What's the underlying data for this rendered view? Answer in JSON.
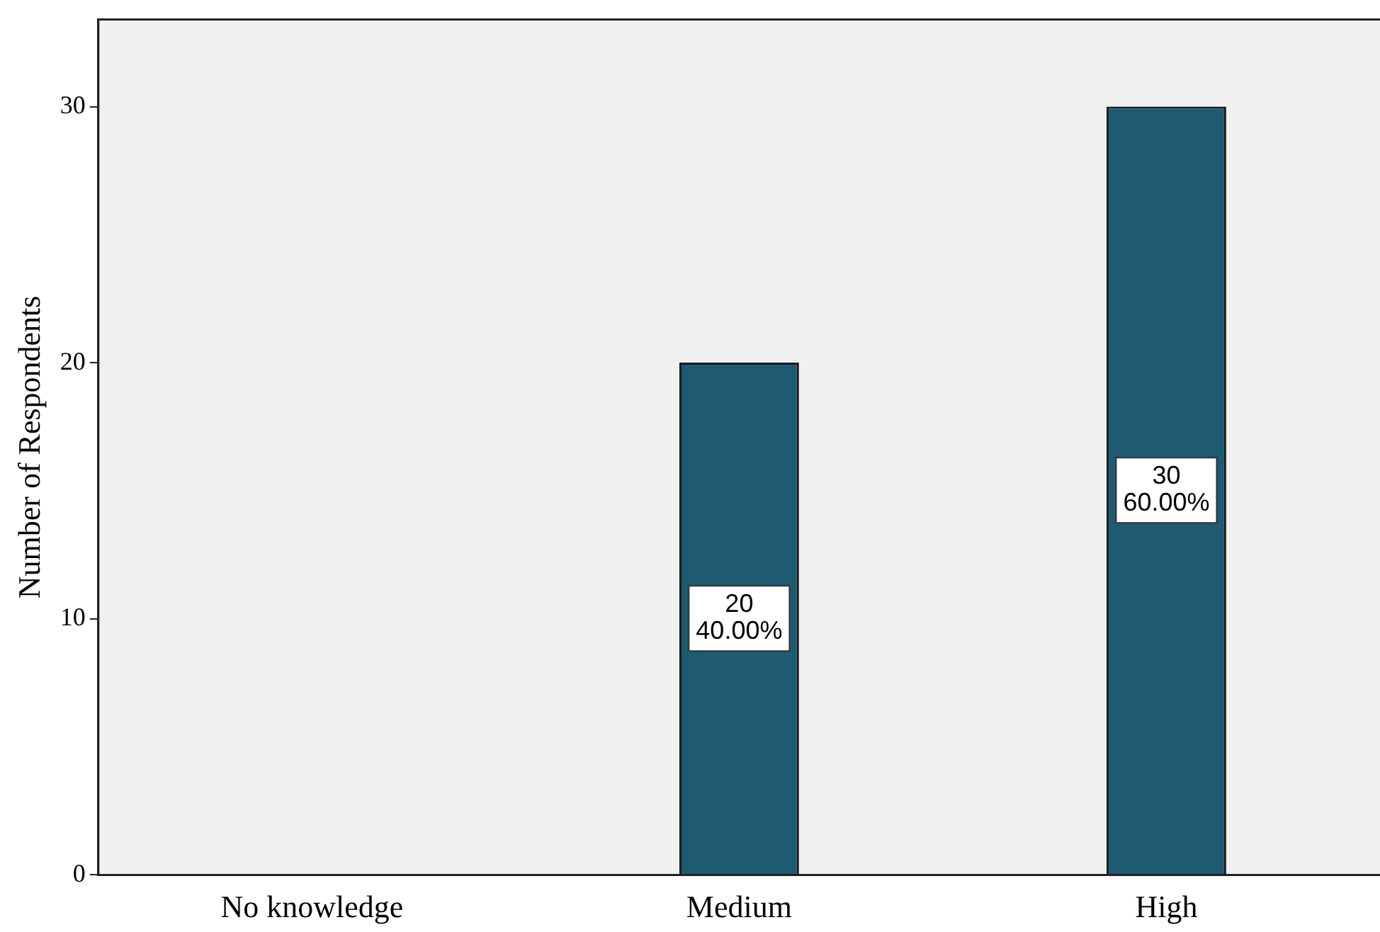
{
  "chart_data": {
    "type": "bar",
    "ylabel": "Number of Respondents",
    "categories": [
      "No knowledge",
      "Medium",
      "High"
    ],
    "values": [
      0,
      20,
      30
    ],
    "color": "#1e5a71",
    "value_labels": [
      null,
      "20\n40.00%",
      "30\n60.00%"
    ],
    "ylim": [
      0,
      33.4
    ],
    "yticks": [
      0,
      10,
      20,
      30
    ],
    "grid": false,
    "legend": false
  }
}
